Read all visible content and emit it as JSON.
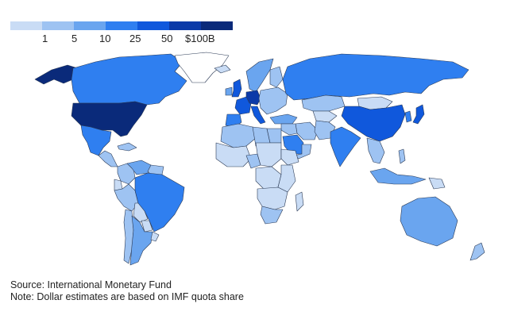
{
  "legend": {
    "scale_colors": [
      "#c9dcf5",
      "#9ec3f2",
      "#6aa5ef",
      "#2f7ff0",
      "#1058dc",
      "#0b3aa8",
      "#0a2a7a"
    ],
    "tick_labels": [
      "1",
      "5",
      "10",
      "25",
      "50",
      "$100B"
    ],
    "no_data_color": "#ffffff"
  },
  "map": {
    "regions": [
      {
        "name": "USA",
        "level": 7
      },
      {
        "name": "Canada",
        "level": 4
      },
      {
        "name": "Alaska",
        "level": 7
      },
      {
        "name": "Greenland",
        "level": 0
      },
      {
        "name": "Mexico",
        "level": 4
      },
      {
        "name": "Central America",
        "level": 2
      },
      {
        "name": "Caribbean",
        "level": 2
      },
      {
        "name": "Colombia",
        "level": 2
      },
      {
        "name": "Venezuela",
        "level": 3
      },
      {
        "name": "Guianas",
        "level": 2
      },
      {
        "name": "Peru",
        "level": 2
      },
      {
        "name": "Ecuador",
        "level": 1
      },
      {
        "name": "Brazil",
        "level": 4
      },
      {
        "name": "Bolivia",
        "level": 1
      },
      {
        "name": "Paraguay",
        "level": 1
      },
      {
        "name": "Chile",
        "level": 2
      },
      {
        "name": "Argentina",
        "level": 3
      },
      {
        "name": "Uruguay",
        "level": 1
      },
      {
        "name": "Iceland",
        "level": 1
      },
      {
        "name": "UK",
        "level": 5
      },
      {
        "name": "Ireland",
        "level": 3
      },
      {
        "name": "France",
        "level": 5
      },
      {
        "name": "Iberia",
        "level": 4
      },
      {
        "name": "Germany",
        "level": 6
      },
      {
        "name": "Italy",
        "level": 5
      },
      {
        "name": "Scandinavia",
        "level": 3
      },
      {
        "name": "Finland",
        "level": 2
      },
      {
        "name": "Eastern Europe",
        "level": 2
      },
      {
        "name": "Turkey",
        "level": 3
      },
      {
        "name": "Russia",
        "level": 4
      },
      {
        "name": "Kazakhstan",
        "level": 2
      },
      {
        "name": "Central Asia",
        "level": 1
      },
      {
        "name": "Mongolia",
        "level": 1
      },
      {
        "name": "China",
        "level": 5
      },
      {
        "name": "Japan",
        "level": 5
      },
      {
        "name": "Korea",
        "level": 4
      },
      {
        "name": "Iran",
        "level": 2
      },
      {
        "name": "Afghanistan/Pakistan",
        "level": 2
      },
      {
        "name": "India",
        "level": 4
      },
      {
        "name": "Saudi Arabia",
        "level": 4
      },
      {
        "name": "Arabian Peninsula",
        "level": 2
      },
      {
        "name": "Iraq/Syria",
        "level": 2
      },
      {
        "name": "Southeast Asia",
        "level": 2
      },
      {
        "name": "Indonesia",
        "level": 3
      },
      {
        "name": "Philippines",
        "level": 2
      },
      {
        "name": "Australia",
        "level": 3
      },
      {
        "name": "New Zealand",
        "level": 2
      },
      {
        "name": "Papua New Guinea",
        "level": 1
      },
      {
        "name": "North Africa",
        "level": 2
      },
      {
        "name": "Egypt",
        "level": 2
      },
      {
        "name": "Libya",
        "level": 2
      },
      {
        "name": "West Africa",
        "level": 1
      },
      {
        "name": "Nigeria",
        "level": 2
      },
      {
        "name": "Central Africa",
        "level": 1
      },
      {
        "name": "DR Congo",
        "level": 1
      },
      {
        "name": "East Africa",
        "level": 1
      },
      {
        "name": "Ethiopia",
        "level": 1
      },
      {
        "name": "Southern Africa",
        "level": 1
      },
      {
        "name": "South Africa",
        "level": 2
      },
      {
        "name": "Madagascar",
        "level": 1
      }
    ]
  },
  "footer": {
    "source": "Source: International Monetary Fund",
    "note": "Note: Dollar estimates are based on IMF quota share"
  }
}
